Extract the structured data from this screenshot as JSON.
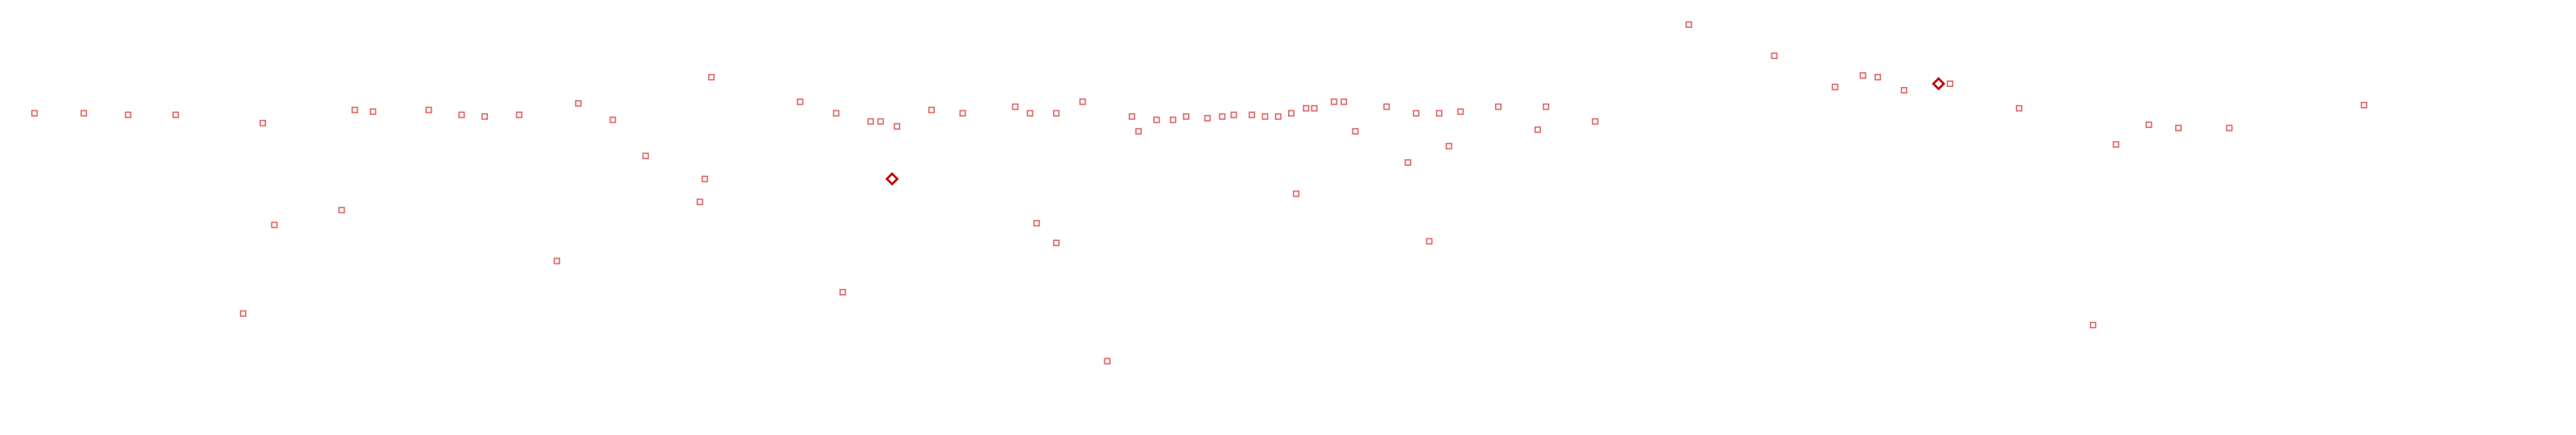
{
  "chart_data": {
    "type": "scatter",
    "xlim": [
      0,
      1568
    ],
    "ylim": [
      0,
      265
    ],
    "series": [
      {
        "color": "#e06666",
        "marker": "square",
        "x": [
          21,
          51,
          78,
          107,
          148,
          160,
          167,
          208,
          216,
          227,
          261,
          281,
          295,
          316,
          339,
          352,
          373,
          393,
          426,
          429,
          433,
          487,
          509,
          513,
          530,
          536,
          546,
          567,
          586,
          618,
          627,
          631,
          643,
          643,
          659,
          674,
          689,
          693,
          704,
          714,
          722,
          735,
          744,
          751,
          762,
          770,
          778,
          786,
          789,
          795,
          800,
          812,
          818,
          825,
          844,
          857,
          862,
          870,
          876,
          882,
          889,
          912,
          936,
          941,
          971,
          1028,
          1080,
          1117,
          1134,
          1143,
          1159,
          1187,
          1229,
          1274,
          1288,
          1308,
          1326,
          1357,
          1439
        ],
        "values": [
          196,
          196,
          195,
          195,
          74,
          190,
          128,
          137,
          198,
          197,
          198,
          195,
          194,
          195,
          106,
          202,
          192,
          170,
          142,
          156,
          218,
          203,
          196,
          87,
          191,
          191,
          188,
          198,
          196,
          200,
          196,
          129,
          196,
          117,
          203,
          45,
          194,
          185,
          192,
          192,
          194,
          193,
          194,
          195,
          195,
          194,
          194,
          196,
          147,
          199,
          199,
          203,
          203,
          185,
          200,
          166,
          196,
          118,
          196,
          176,
          197,
          200,
          186,
          200,
          191,
          250,
          231,
          212,
          219,
          218,
          210,
          214,
          199,
          67,
          177,
          189,
          187,
          187,
          201
        ]
      },
      {
        "color": "#c00000",
        "marker": "diamond",
        "x": [
          543,
          1180
        ],
        "values": [
          156,
          214
        ]
      }
    ]
  }
}
